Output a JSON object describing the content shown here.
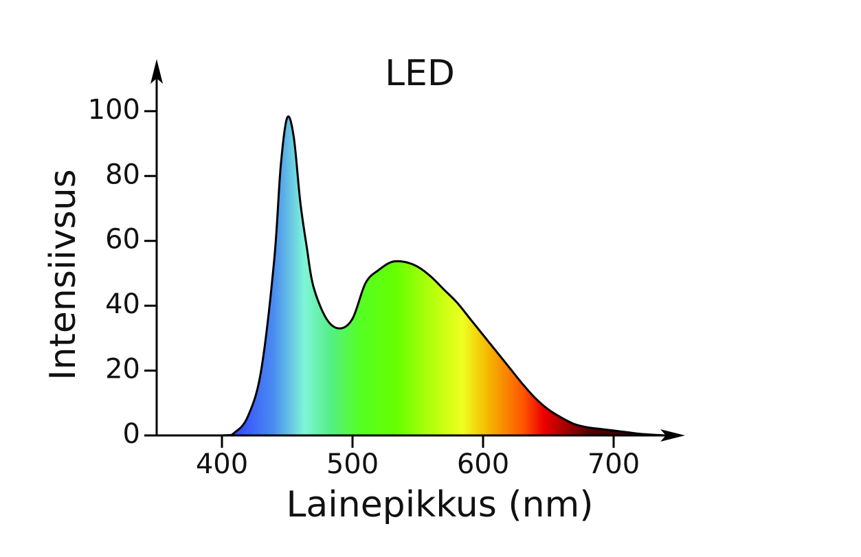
{
  "chart_data": {
    "type": "area",
    "title": "LED",
    "x_label": "Lainepikkus (nm)",
    "y_label": "Intensiivsus",
    "x": [
      350,
      400,
      410,
      420,
      430,
      440,
      445,
      450,
      455,
      460,
      465,
      470,
      480,
      490,
      500,
      510,
      520,
      530,
      540,
      550,
      560,
      570,
      580,
      590,
      600,
      610,
      620,
      630,
      640,
      650,
      660,
      670,
      680,
      690,
      700,
      710,
      720,
      730,
      740
    ],
    "values": [
      0,
      0,
      1,
      6,
      20,
      54,
      83,
      98,
      92,
      72,
      58,
      46,
      36,
      33,
      36,
      47,
      51,
      53.5,
      53.5,
      52,
      49,
      45,
      41,
      36,
      31,
      26,
      21,
      16,
      11.5,
      8,
      5.5,
      3.5,
      2.5,
      2,
      1.5,
      1,
      0.5,
      0.2,
      0
    ],
    "line_color": "#000000",
    "xlim": [
      350,
      750
    ],
    "ylim": [
      0,
      115
    ],
    "xticks": [
      400,
      500,
      600,
      700
    ],
    "yticks": [
      0,
      20,
      40,
      60,
      80,
      100
    ]
  }
}
